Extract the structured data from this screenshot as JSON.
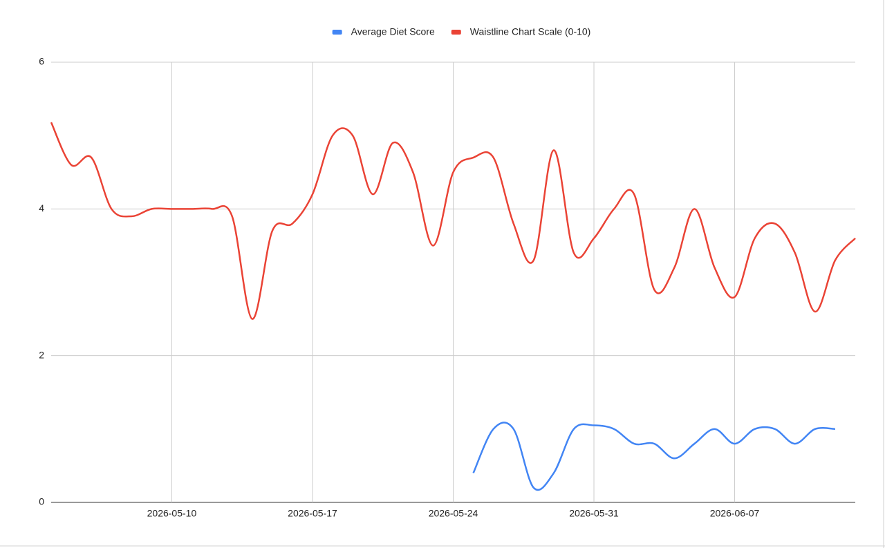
{
  "chart_data": {
    "type": "line",
    "x": [
      "2026-05-04",
      "2026-05-05",
      "2026-05-06",
      "2026-05-07",
      "2026-05-08",
      "2026-05-09",
      "2026-05-10",
      "2026-05-11",
      "2026-05-12",
      "2026-05-13",
      "2026-05-14",
      "2026-05-15",
      "2026-05-16",
      "2026-05-17",
      "2026-05-18",
      "2026-05-19",
      "2026-05-20",
      "2026-05-21",
      "2026-05-22",
      "2026-05-23",
      "2026-05-24",
      "2026-05-25",
      "2026-05-26",
      "2026-05-27",
      "2026-05-28",
      "2026-05-29",
      "2026-05-30",
      "2026-05-31",
      "2026-06-01",
      "2026-06-02",
      "2026-06-03",
      "2026-06-04",
      "2026-06-05",
      "2026-06-06",
      "2026-06-07",
      "2026-06-08",
      "2026-06-09",
      "2026-06-10",
      "2026-06-11",
      "2026-06-12",
      "2026-06-13"
    ],
    "series": [
      {
        "name": "Average Diet Score",
        "color": "#4285f4",
        "values": [
          null,
          null,
          null,
          null,
          null,
          null,
          null,
          null,
          null,
          null,
          null,
          null,
          null,
          null,
          null,
          null,
          null,
          null,
          null,
          null,
          null,
          0.4,
          1.0,
          1.0,
          0.2,
          0.4,
          1.0,
          1.05,
          1.0,
          0.8,
          0.8,
          0.6,
          0.8,
          1.0,
          0.8,
          1.0,
          1.0,
          0.8,
          1.0,
          1.0,
          null
        ]
      },
      {
        "name": "Waistline Chart Scale (0-10)",
        "color": "#ea4335",
        "values": [
          5.18,
          4.6,
          4.7,
          4.0,
          3.9,
          4.0,
          4.0,
          4.0,
          4.0,
          3.9,
          2.5,
          3.7,
          3.8,
          4.2,
          5.0,
          5.0,
          4.2,
          4.9,
          4.5,
          3.5,
          4.5,
          4.7,
          4.7,
          3.8,
          3.3,
          4.8,
          3.4,
          3.6,
          4.0,
          4.2,
          2.9,
          3.2,
          4.0,
          3.2,
          2.8,
          3.6,
          3.8,
          3.4,
          2.6,
          3.3,
          3.6
        ]
      }
    ],
    "xlim": [
      "2026-05-04",
      "2026-06-13"
    ],
    "xticks": [
      "2026-05-10",
      "2026-05-17",
      "2026-05-24",
      "2026-05-31",
      "2026-06-07"
    ],
    "ylim": [
      0,
      6
    ],
    "yticks": [
      0,
      2,
      4,
      6
    ],
    "grid": true,
    "legend": "top",
    "smooth": true
  }
}
